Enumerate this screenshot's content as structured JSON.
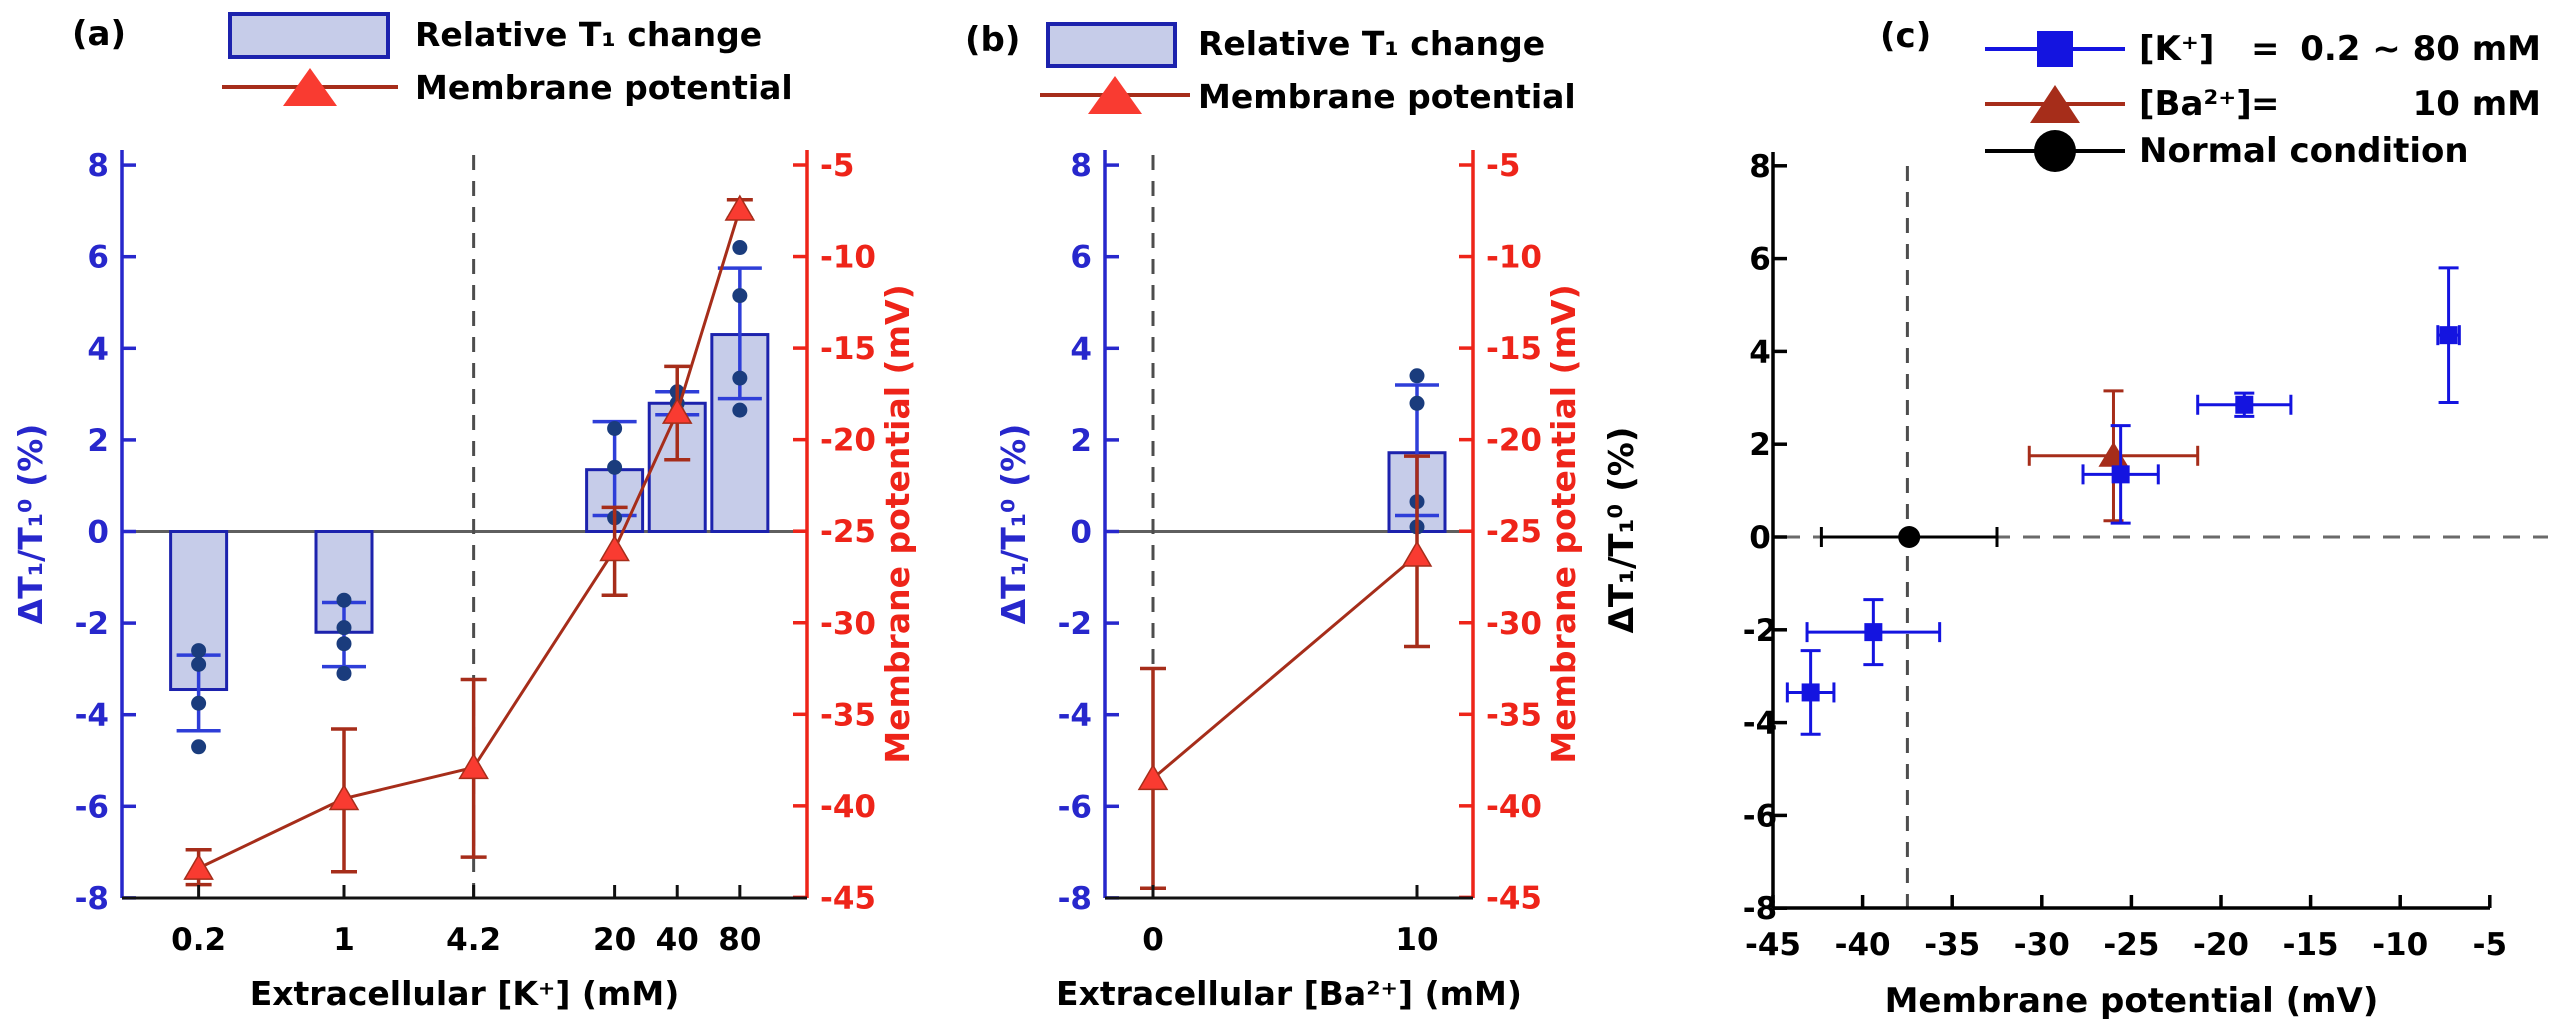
{
  "colors": {
    "bar_fill": "#c6cce9",
    "bar_edge": "#1c22ad",
    "blue_axis": "#2727cc",
    "blue_err": "#2e3ed8",
    "dot": "#1a3c7d",
    "red_axis": "#ee2419",
    "red_bright": "#f93b31",
    "red_dark": "#a62d1a",
    "blue_c": "#1414e0",
    "dash": "#4d4d4d",
    "zero_line": "#5f5f5f",
    "black": "#000000"
  },
  "chart_data": {
    "panels": [
      {
        "type": "bar-line-dual-axis",
        "label": "(a)",
        "legend": {
          "bar_label": "Relative T₁ change",
          "line_label": "Membrane potential"
        },
        "y_left": {
          "label": "ΔT₁/T₁⁰ (%)",
          "min": -8,
          "max": 8,
          "ticks": [
            "8",
            "6",
            "4",
            "2",
            "0",
            "-2",
            "-4",
            "-6",
            "-8"
          ]
        },
        "y_right": {
          "label": "Membrane potential (mV)",
          "min": -45,
          "max": -5,
          "ticks": [
            "-5",
            "-10",
            "-15",
            "-20",
            "-25",
            "-30",
            "-35",
            "-40",
            "-45"
          ]
        },
        "x": {
          "label": "Extracellular [K⁺] (mM)",
          "scale": "log",
          "ticks": [
            "0.2",
            "1",
            "4.2",
            "20",
            "40",
            "80"
          ]
        },
        "dashed_at": "4.2",
        "bars": [
          {
            "x": "0.2",
            "value": -3.45,
            "err_lo": -4.35,
            "err_hi": -2.7,
            "dots": [
              -2.6,
              -2.9,
              -3.75,
              -4.7
            ]
          },
          {
            "x": "1",
            "value": -2.2,
            "err_lo": -2.95,
            "err_hi": -1.55,
            "dots": [
              -1.5,
              -2.1,
              -2.45,
              -3.1
            ]
          },
          {
            "x": "20",
            "value": 1.35,
            "err_lo": 0.35,
            "err_hi": 2.4,
            "dots": [
              2.25,
              1.4,
              0.3
            ]
          },
          {
            "x": "40",
            "value": 2.8,
            "err_lo": 2.55,
            "err_hi": 3.05,
            "dots": [
              3.05,
              2.8,
              2.6
            ]
          },
          {
            "x": "80",
            "value": 4.3,
            "err_lo": 2.9,
            "err_hi": 5.75,
            "dots": [
              6.2,
              5.15,
              3.35,
              2.65
            ]
          }
        ],
        "potential": [
          {
            "x": "0.2",
            "mv": -43.4,
            "err_lo": -44.3,
            "err_hi": -42.4
          },
          {
            "x": "1",
            "mv": -39.6,
            "err_lo": -43.6,
            "err_hi": -35.8
          },
          {
            "x": "4.2",
            "mv": -37.9,
            "err_lo": -42.8,
            "err_hi": -33.1
          },
          {
            "x": "20",
            "mv": -26.0,
            "err_lo": -28.5,
            "err_hi": -23.7
          },
          {
            "x": "40",
            "mv": -18.5,
            "err_lo": -21.1,
            "err_hi": -16.0
          },
          {
            "x": "80",
            "mv": -7.4,
            "err_lo": -7.9,
            "err_hi": -6.9
          }
        ]
      },
      {
        "type": "bar-line-dual-axis",
        "label": "(b)",
        "legend": {
          "bar_label": "Relative T₁ change",
          "line_label": "Membrane potential"
        },
        "y_left": {
          "label": "ΔT₁/T₁⁰ (%)",
          "min": -8,
          "max": 8,
          "ticks": [
            "8",
            "6",
            "4",
            "2",
            "0",
            "-2",
            "-4",
            "-6",
            "-8"
          ]
        },
        "y_right": {
          "label": "Membrane potential (mV)",
          "min": -45,
          "max": -5,
          "ticks": [
            "-5",
            "-10",
            "-15",
            "-20",
            "-25",
            "-30",
            "-35",
            "-40",
            "-45"
          ]
        },
        "x": {
          "label": "Extracellular [Ba²⁺] (mM)",
          "scale": "linear",
          "ticks": [
            "0",
            "10"
          ]
        },
        "dashed_at": "0",
        "bars": [
          {
            "x": "10",
            "value": 1.72,
            "err_lo": 0.35,
            "err_hi": 3.2,
            "dots": [
              3.4,
              2.8,
              0.65,
              0.1
            ]
          }
        ],
        "potential": [
          {
            "x": "0",
            "mv": -38.5,
            "err_lo": -44.5,
            "err_hi": -32.5
          },
          {
            "x": "10",
            "mv": -26.3,
            "err_lo": -31.3,
            "err_hi": -20.9
          }
        ]
      },
      {
        "type": "scatter-errorbar",
        "label": "(c)",
        "legend": {
          "entries": [
            {
              "marker": "square",
              "name": "[K⁺]",
              "eq": "=",
              "value": "0.2 ~ 80 mM"
            },
            {
              "marker": "triangle",
              "name": "[Ba²⁺]",
              "eq": "=",
              "value": "10 mM"
            },
            {
              "marker": "circle",
              "name": "Normal condition",
              "eq": "",
              "value": ""
            }
          ]
        },
        "y": {
          "label": "ΔT₁/T₁⁰ (%)",
          "min": -8,
          "max": 8,
          "ticks": [
            "8",
            "6",
            "4",
            "2",
            "0",
            "-2",
            "-4",
            "-6",
            "-8"
          ]
        },
        "x": {
          "label": "Membrane potential (mV)",
          "min": -45,
          "max": -5,
          "ticks": [
            "-45",
            "-40",
            "-35",
            "-30",
            "-25",
            "-20",
            "-15",
            "-10",
            "-5"
          ]
        },
        "dashed_v": -37.5,
        "dashed_h": 0,
        "series": [
          {
            "name": "K+ 0.2~80 mM",
            "marker": "square",
            "color_key": "blue_c",
            "points": [
              {
                "x": -42.9,
                "y": -3.35,
                "xe": 1.3,
                "ye": 0.9
              },
              {
                "x": -39.4,
                "y": -2.05,
                "xe": 3.7,
                "ye": 0.7
              },
              {
                "x": -25.6,
                "y": 1.35,
                "xe": 2.1,
                "ye": 1.05
              },
              {
                "x": -18.7,
                "y": 2.85,
                "xe": 2.6,
                "ye": 0.25
              },
              {
                "x": -7.3,
                "y": 4.35,
                "xe": 0.6,
                "ye": 1.45
              }
            ]
          },
          {
            "name": "Ba2+ 10 mM",
            "marker": "triangle",
            "color_key": "red_dark",
            "points": [
              {
                "x": -26.0,
                "y": 1.75,
                "xe": 4.7,
                "ye": 1.4
              }
            ]
          },
          {
            "name": "Normal condition",
            "marker": "circle",
            "color_key": "black",
            "points": [
              {
                "x": -37.4,
                "y": 0.0,
                "xe": 4.9,
                "ye": 0.0
              }
            ]
          }
        ]
      }
    ]
  }
}
